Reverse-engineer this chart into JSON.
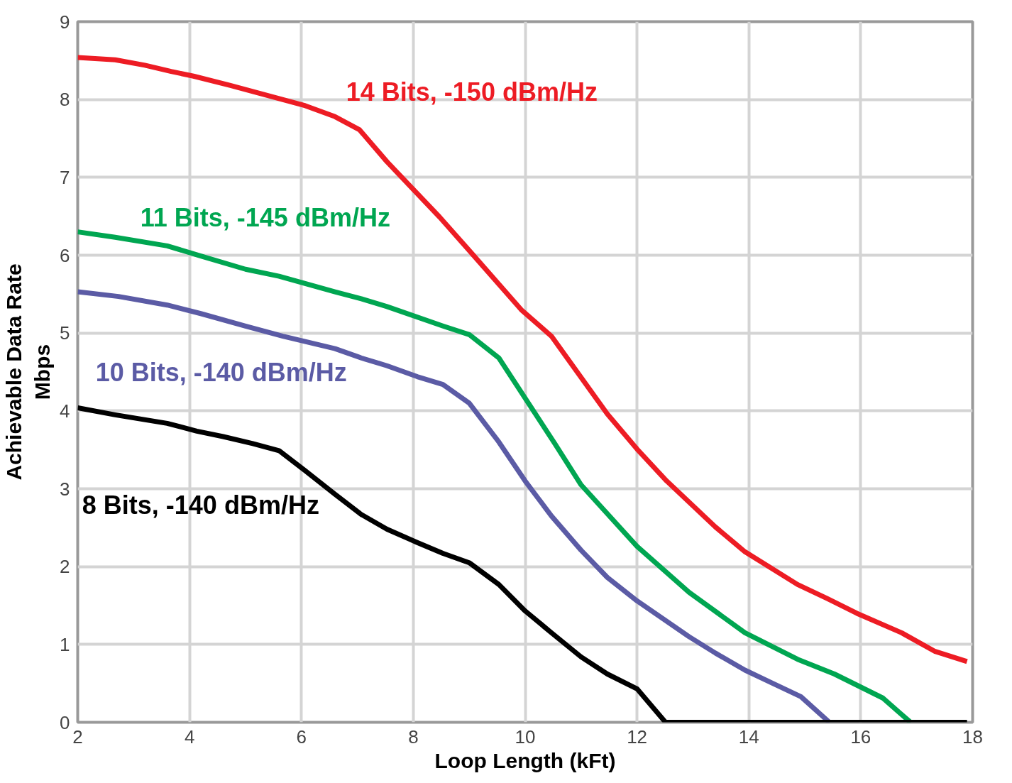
{
  "chart_data": {
    "type": "line",
    "xlabel": "Loop Length (kFt)",
    "ylabel": "Achievable Data Rate\nMbps",
    "xlim": [
      2,
      18
    ],
    "ylim": [
      0,
      9
    ],
    "xticks": [
      2,
      4,
      6,
      8,
      10,
      12,
      14,
      16,
      18
    ],
    "yticks": [
      0,
      1,
      2,
      3,
      4,
      5,
      6,
      7,
      8,
      9
    ],
    "grid": true,
    "legend": false,
    "line_style": "solid",
    "marker": "none",
    "series": [
      {
        "name": "14 Bits, -150 dBm/Hz",
        "color": "#ed1c24",
        "x": [
          2,
          2.67,
          3.2,
          3.67,
          4.07,
          4.73,
          5.4,
          6.07,
          6.6,
          7.04,
          7.53,
          8.47,
          9.0,
          9.93,
          10.47,
          11.47,
          12.0,
          12.53,
          13.4,
          13.93,
          14.87,
          15.4,
          15.93,
          16.73,
          17.33,
          17.9
        ],
        "values": [
          8.54,
          8.51,
          8.44,
          8.36,
          8.3,
          8.18,
          8.05,
          7.92,
          7.78,
          7.61,
          7.2,
          6.49,
          6.06,
          5.3,
          4.96,
          3.96,
          3.51,
          3.1,
          2.51,
          2.19,
          1.77,
          1.59,
          1.4,
          1.15,
          0.91,
          0.78
        ]
      },
      {
        "name": "11 Bits, -145 dBm/Hz",
        "color": "#00a651",
        "x": [
          2,
          2.67,
          3.6,
          4.2,
          5.0,
          5.6,
          6.6,
          7.07,
          7.53,
          8.53,
          9.0,
          9.53,
          10.53,
          11.0,
          12.0,
          12.93,
          13.93,
          14.87,
          15.53,
          16.4,
          16.89
        ],
        "values": [
          6.3,
          6.23,
          6.12,
          5.99,
          5.82,
          5.73,
          5.53,
          5.44,
          5.34,
          5.09,
          4.98,
          4.68,
          3.58,
          3.05,
          2.26,
          1.67,
          1.15,
          0.81,
          0.62,
          0.31,
          0
        ]
      },
      {
        "name": "10 Bits, -140 dBm/Hz",
        "color": "#5b5ba5",
        "x": [
          2,
          2.73,
          3.6,
          4.2,
          5.0,
          5.67,
          6.6,
          7.07,
          7.53,
          8.07,
          8.53,
          9.0,
          9.53,
          10.0,
          10.47,
          11.0,
          11.47,
          12.0,
          12.93,
          13.4,
          13.93,
          14.4,
          14.93,
          15.44
        ],
        "values": [
          5.53,
          5.47,
          5.36,
          5.25,
          5.09,
          4.96,
          4.8,
          4.68,
          4.58,
          4.44,
          4.34,
          4.1,
          3.6,
          3.1,
          2.65,
          2.21,
          1.86,
          1.56,
          1.1,
          0.89,
          0.67,
          0.51,
          0.33,
          0
        ]
      },
      {
        "name": "8 Bits, -140 dBm/Hz",
        "color": "#000000",
        "x": [
          2,
          2.67,
          3.6,
          4.13,
          4.6,
          5.13,
          5.6,
          6.07,
          6.6,
          7.07,
          7.53,
          8.07,
          8.53,
          9.0,
          9.53,
          10.0,
          10.47,
          11.0,
          11.47,
          12.0,
          12.51,
          17.9
        ],
        "values": [
          4.04,
          3.95,
          3.84,
          3.74,
          3.67,
          3.58,
          3.49,
          3.23,
          2.93,
          2.67,
          2.48,
          2.31,
          2.17,
          2.05,
          1.77,
          1.43,
          1.15,
          0.84,
          0.62,
          0.43,
          0,
          0
        ]
      }
    ]
  }
}
